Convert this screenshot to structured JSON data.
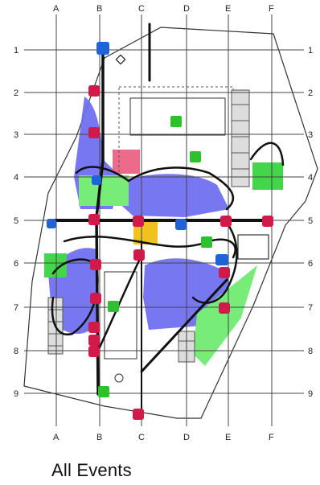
{
  "caption": "All Events",
  "grid": {
    "columns": [
      "A",
      "B",
      "C",
      "D",
      "E",
      "F"
    ],
    "rows": [
      "1",
      "2",
      "3",
      "4",
      "5",
      "6",
      "7",
      "8",
      "9"
    ]
  },
  "colors": {
    "blue_zone": "#6b6cf0",
    "green_zone": "#78ec78",
    "pink_block": "#ec6a8a",
    "yellow_block": "#f0c21e",
    "event_red": "#d11a4a",
    "event_green": "#2ec02e",
    "event_blue": "#1f63d6",
    "event_yellow": "#e8b800",
    "path_black": "#111111",
    "grid_line": "#444444"
  }
}
